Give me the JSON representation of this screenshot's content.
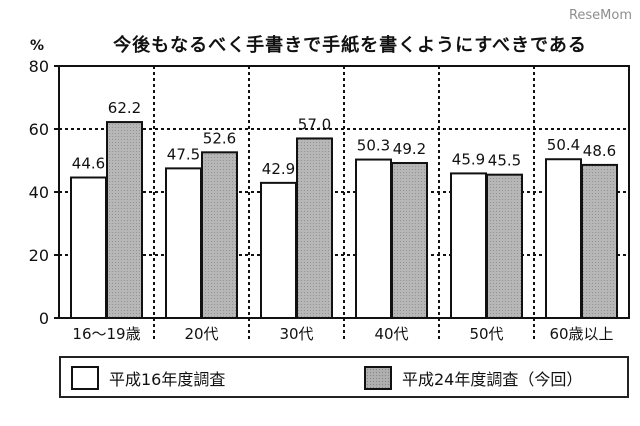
{
  "watermark": "ReseMom",
  "chart_data": {
    "type": "bar",
    "title": "今後もなるべく手書きで手紙を書くようにすべきである",
    "unit": "%",
    "categories": [
      "16～19歳",
      "20代",
      "30代",
      "40代",
      "50代",
      "60歳以上"
    ],
    "series": [
      {
        "name": "平成16年度調査",
        "values": [
          44.6,
          47.5,
          42.9,
          50.3,
          45.9,
          50.4
        ],
        "fill": "#ffffff",
        "data_labels": [
          "44.6",
          "47.5",
          "42.9",
          "50.3",
          "45.9",
          "50.4"
        ]
      },
      {
        "name": "平成24年度調査（今回）",
        "values": [
          62.2,
          52.6,
          57.0,
          49.2,
          45.5,
          48.6
        ],
        "fill": "#b0b0b0",
        "data_labels": [
          "62.2",
          "52.6",
          "57.0",
          "49.2",
          "45.5",
          "48.6"
        ]
      }
    ],
    "y_ticks": [
      0,
      20,
      40,
      60,
      80
    ],
    "y_tick_labels": [
      "0",
      "20",
      "40",
      "60",
      "80"
    ],
    "ylim": [
      0,
      80
    ],
    "grid": true,
    "legend_position": "bottom"
  }
}
